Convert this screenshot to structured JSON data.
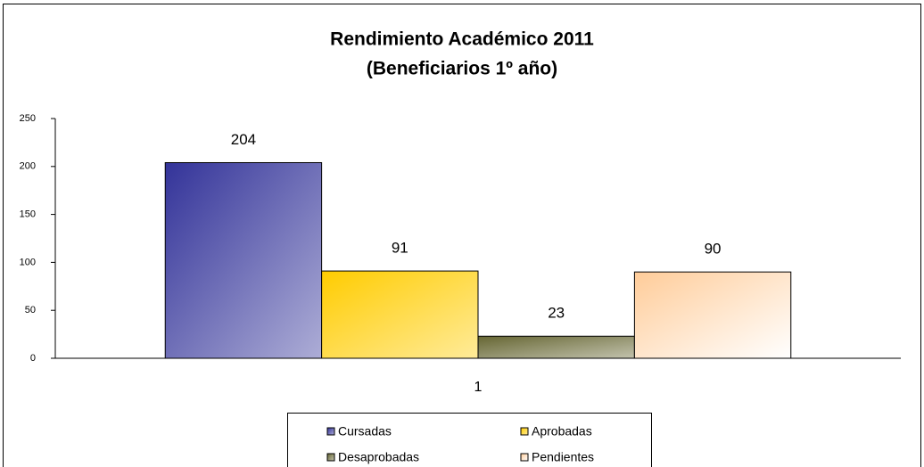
{
  "chart_data": {
    "type": "bar",
    "title": [
      "Rendimiento Académico 2011",
      "(Beneficiarios 1º año)"
    ],
    "categories": [
      "1"
    ],
    "series": [
      {
        "name": "Cursadas",
        "color": "#333399",
        "values": [
          204
        ]
      },
      {
        "name": "Aprobadas",
        "color": "#ffcc00",
        "values": [
          91
        ]
      },
      {
        "name": "Desaprobadas",
        "color": "#666633",
        "values": [
          23
        ]
      },
      {
        "name": "Pendientes",
        "color": "#ffcc99",
        "values": [
          90
        ]
      }
    ],
    "ylim": [
      0,
      250
    ],
    "yticks": [
      0,
      50,
      100,
      150,
      200,
      250
    ],
    "grid": false,
    "legend": "bottom"
  }
}
